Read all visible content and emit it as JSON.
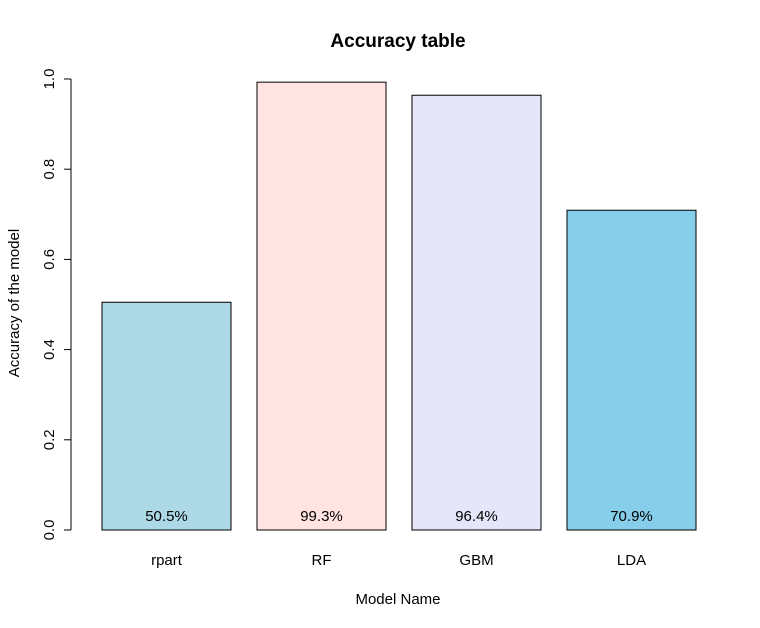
{
  "chart_data": {
    "type": "bar",
    "title": "Accuracy table",
    "xlabel": "Model Name",
    "ylabel": "Accuracy of the model",
    "categories": [
      "rpart",
      "RF",
      "GBM",
      "LDA"
    ],
    "values": [
      0.505,
      0.993,
      0.964,
      0.709
    ],
    "value_labels": [
      "50.5%",
      "99.3%",
      "96.4%",
      "70.9%"
    ],
    "colors": [
      "#add8e6",
      "#ffe4e1",
      "#e6e6fa",
      "#87ceeb"
    ],
    "ylim": [
      0,
      1
    ],
    "yticks": [
      0.0,
      0.2,
      0.4,
      0.6,
      0.8,
      1.0
    ],
    "ytick_labels": [
      "0.0",
      "0.2",
      "0.4",
      "0.6",
      "0.8",
      "1.0"
    ],
    "grid": false,
    "legend": "none"
  }
}
